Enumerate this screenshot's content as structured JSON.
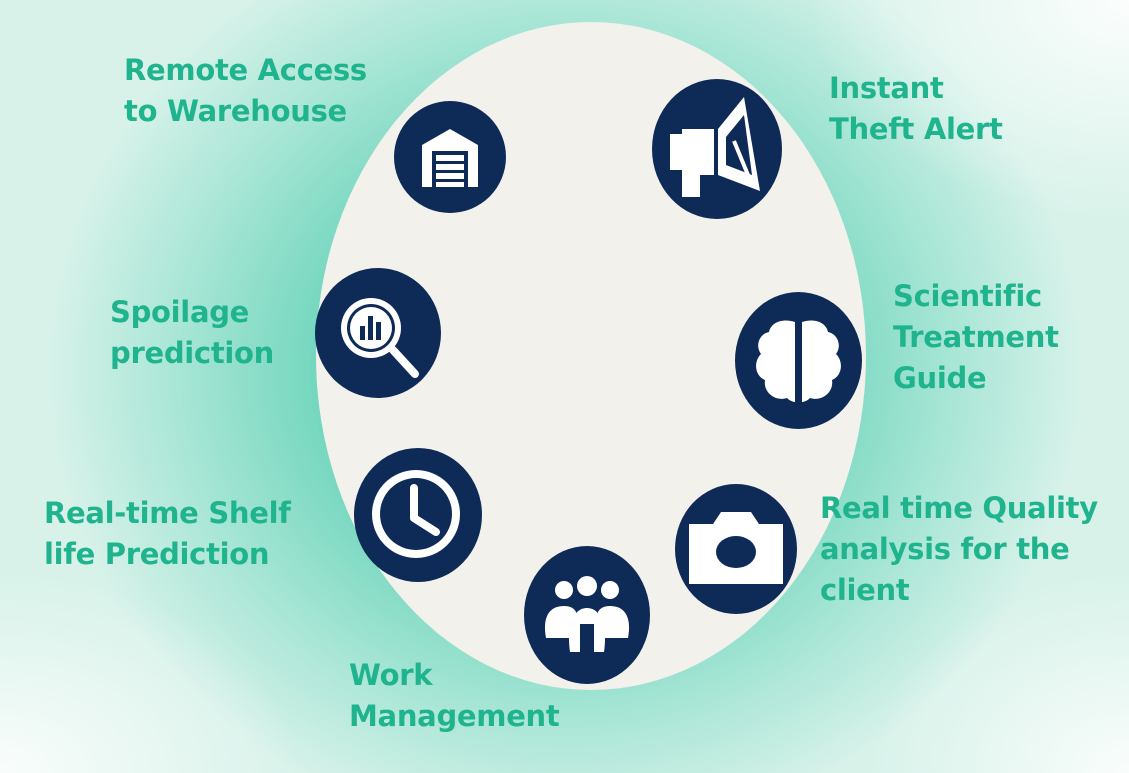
{
  "features": {
    "remote_access": {
      "line1": "Remote Access",
      "line2": "to Warehouse",
      "icon": "warehouse-icon"
    },
    "theft_alert": {
      "line1": "Instant",
      "line2": "Theft Alert",
      "icon": "megaphone-icon"
    },
    "spoilage": {
      "line1": "Spoilage",
      "line2": "prediction",
      "icon": "analytics-search-icon"
    },
    "treatment": {
      "line1": "Scientific",
      "line2": "Treatment",
      "line3": "Guide",
      "icon": "brain-icon"
    },
    "shelf_life": {
      "line1": "Real-time Shelf",
      "line2": "life Prediction",
      "icon": "clock-icon"
    },
    "quality": {
      "line1": "Real time Quality",
      "line2": "analysis for the",
      "line3": "client",
      "icon": "camera-icon"
    },
    "work": {
      "line1": "Work",
      "line2": "Management",
      "icon": "team-icon"
    }
  },
  "colors": {
    "label": "#1fb48e",
    "badge": "#0e2a57",
    "oval": "#f3f1ec",
    "background": "#3fc9a8"
  }
}
